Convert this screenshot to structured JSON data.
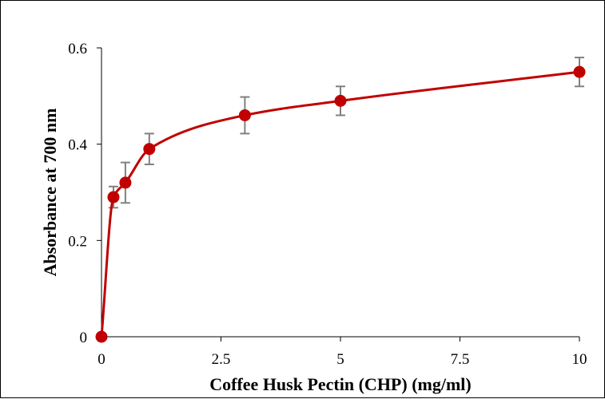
{
  "chart_data": {
    "type": "scatter",
    "title": "",
    "xlabel": "Coffee Husk Pectin (CHP) (mg/ml)",
    "ylabel": "Absorbance at 700 nm",
    "xlim": [
      0,
      10
    ],
    "ylim": [
      0,
      0.6
    ],
    "x_ticks": [
      0,
      2.5,
      5,
      7.5,
      10
    ],
    "x_tick_labels": [
      "0",
      "2.5",
      "5",
      "7.5",
      "10"
    ],
    "y_ticks": [
      0,
      0.2,
      0.4,
      0.6
    ],
    "y_tick_labels": [
      "0",
      "0.2",
      "0.4",
      "0.6"
    ],
    "grid": false,
    "legend": "none",
    "smooth_line": true,
    "series": [
      {
        "x": [
          0,
          0.25,
          0.5,
          1,
          3,
          5,
          10
        ],
        "y": [
          0,
          0.29,
          0.32,
          0.39,
          0.46,
          0.49,
          0.55
        ],
        "error": [
          0,
          0.022,
          0.042,
          0.032,
          0.038,
          0.03,
          0.03
        ],
        "color": "#C00000"
      }
    ],
    "error_bar_color": "#808080"
  }
}
